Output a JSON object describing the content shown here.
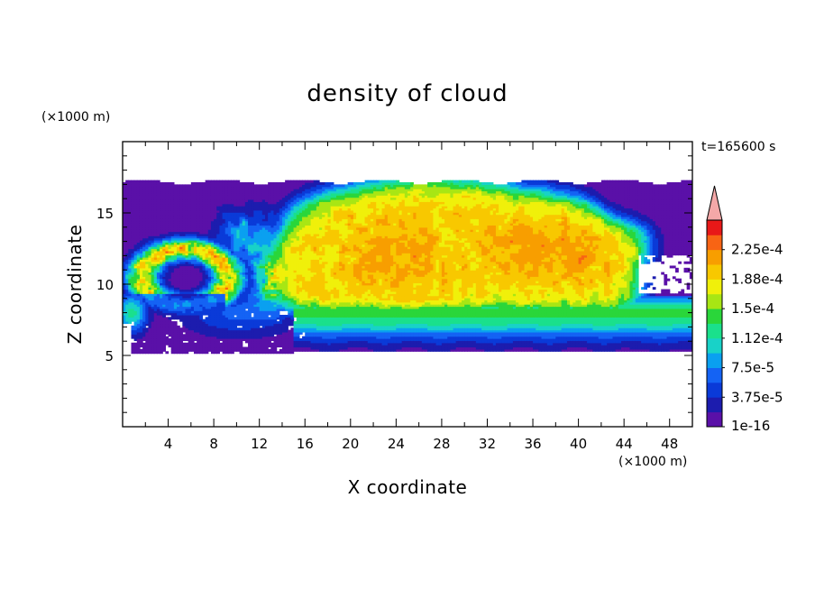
{
  "chart_data": {
    "type": "heatmap",
    "title": "density of cloud",
    "xlabel": "X coordinate",
    "ylabel": "Z coordinate",
    "x_unit": "(×1000 m)",
    "y_unit": "(×1000 m)",
    "time_label": "t=165600 s",
    "xlim": [
      0,
      50
    ],
    "ylim": [
      0,
      20
    ],
    "x_ticks": [
      4,
      8,
      12,
      16,
      20,
      24,
      28,
      32,
      36,
      40,
      44,
      48
    ],
    "y_ticks": [
      5,
      10,
      15
    ],
    "colorbar": {
      "labels": [
        "2.25e-4",
        "1.88e-4",
        "1.5e-4",
        "1.12e-4",
        "7.5e-5",
        "3.75e-5",
        "1e-16"
      ],
      "levels": [
        1e-16,
        1.875e-05,
        3.75e-05,
        5.625e-05,
        7.5e-05,
        9.375e-05,
        0.0001125,
        0.00013125,
        0.00015,
        0.00016875,
        0.0001875,
        0.00020625,
        0.000225,
        0.00024375
      ],
      "colors": [
        "#5a10a8",
        "#1c1cae",
        "#0a3ad8",
        "#1463f4",
        "#0aa0f0",
        "#18d2c8",
        "#1ae08c",
        "#2ad63a",
        "#a8e614",
        "#f0f00a",
        "#f8c800",
        "#f89e00",
        "#f86414",
        "#e81818"
      ],
      "extend_color": "#f4a8a8"
    },
    "regions_description_values": {
      "anvil_top_z": 17.2,
      "cloud_base_z": 5.3,
      "core_x_range": [
        16,
        45
      ],
      "core_density_approx": 0.00019
    }
  }
}
